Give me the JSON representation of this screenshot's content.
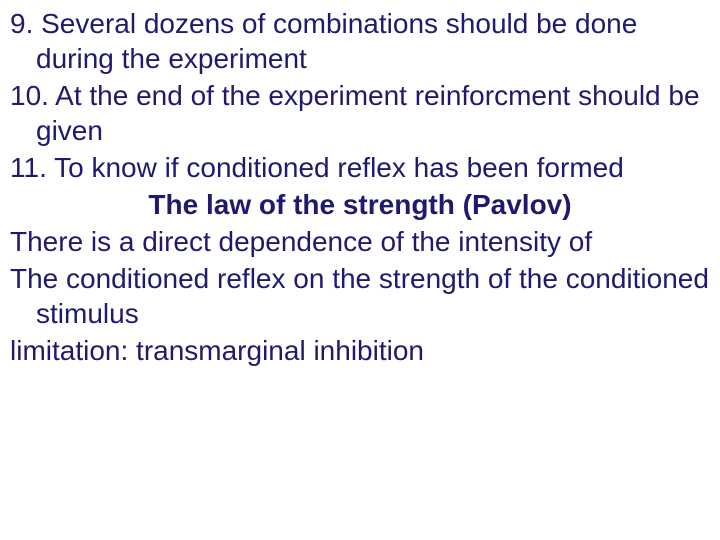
{
  "text_color": "#1f1a6e",
  "background_color": "#ffffff",
  "font_family": "Tahoma, Verdana, Arial, sans-serif",
  "font_size_pt": 21,
  "lines": {
    "l1": "9. Several dozens of combinations should be done during the experiment",
    "l2": "10. At the end of the experiment reinforcment should be given",
    "l3": "11. To know if conditioned reflex has been formed",
    "title": "The law of the strength (Pavlov)",
    "l4a": "There is a direct dependence of the intensity of",
    "l4b": "The conditioned reflex on the strength of the conditioned stimulus",
    "l5": "limitation: transmarginal inhibition"
  }
}
